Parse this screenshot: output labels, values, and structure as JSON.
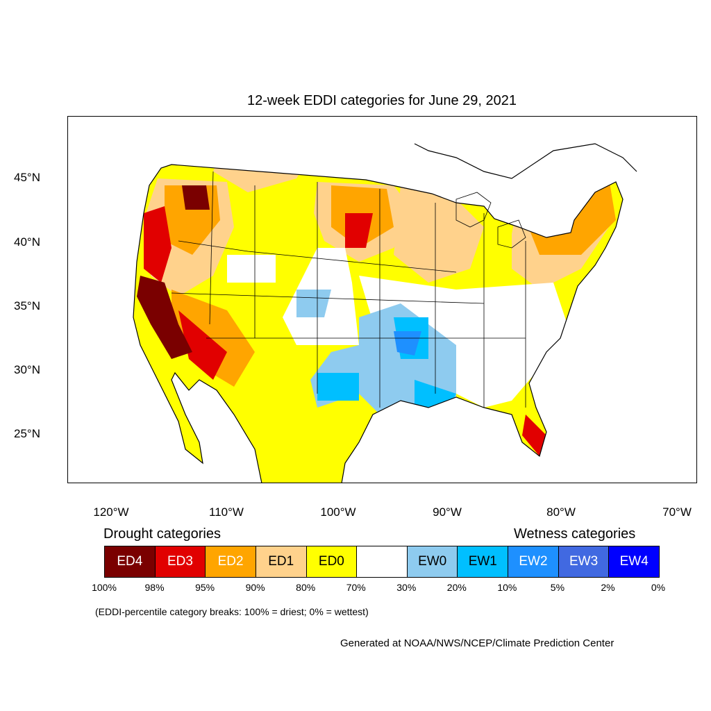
{
  "title": "12-week EDDI categories for June 29, 2021",
  "lat_labels": [
    "45°N",
    "40°N",
    "35°N",
    "30°N",
    "25°N"
  ],
  "lon_labels": [
    "120°W",
    "110°W",
    "100°W",
    "90°W",
    "80°W",
    "70°W"
  ],
  "legend": {
    "drought_heading": "Drought categories",
    "wetness_heading": "Wetness categories",
    "categories": [
      {
        "label": "ED4",
        "color": "#7a0000",
        "text_color": "#ffffff"
      },
      {
        "label": "ED3",
        "color": "#e10000",
        "text_color": "#ffffff"
      },
      {
        "label": "ED2",
        "color": "#ffa500",
        "text_color": "#ffffff"
      },
      {
        "label": "ED1",
        "color": "#ffd28c",
        "text_color": "#000000"
      },
      {
        "label": "ED0",
        "color": "#ffff00",
        "text_color": "#000000"
      },
      {
        "label": "",
        "color": "#ffffff",
        "text_color": "#000000"
      },
      {
        "label": "EW0",
        "color": "#8ecbef",
        "text_color": "#000000"
      },
      {
        "label": "EW1",
        "color": "#00bfff",
        "text_color": "#000000"
      },
      {
        "label": "EW2",
        "color": "#1e90ff",
        "text_color": "#ffffff"
      },
      {
        "label": "EW3",
        "color": "#4169e1",
        "text_color": "#ffffff"
      },
      {
        "label": "EW4",
        "color": "#0000ff",
        "text_color": "#ffffff"
      }
    ],
    "breaks": [
      "100%",
      "98%",
      "95%",
      "90%",
      "80%",
      "70%",
      "30%",
      "20%",
      "10%",
      "5%",
      "2%",
      "0%"
    ]
  },
  "note": "(EDDI-percentile category breaks: 100% = driest; 0% = wettest)",
  "credit": "Generated at NOAA/NWS/NCEP/Climate Prediction Center",
  "colors": {
    "ED4": "#7a0000",
    "ED3": "#e10000",
    "ED2": "#ffa500",
    "ED1": "#ffd28c",
    "ED0": "#ffff00",
    "EW0": "#8ecbef",
    "EW1": "#00bfff",
    "EW2": "#1e90ff",
    "EW3": "#4169e1",
    "EW4": "#0000ff"
  }
}
